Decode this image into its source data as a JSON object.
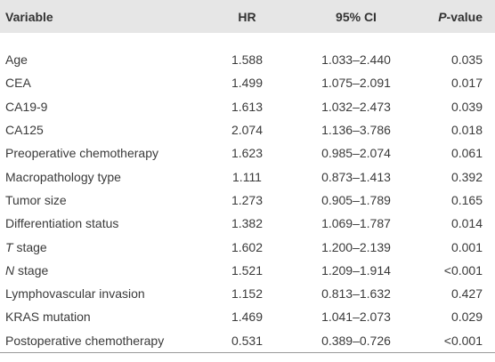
{
  "table": {
    "header": [
      "Variable",
      "HR",
      "95% CI",
      "P-value"
    ],
    "rows": [
      [
        "Age",
        "1.588",
        "1.033–2.440",
        "0.035"
      ],
      [
        "CEA",
        "1.499",
        "1.075–2.091",
        "0.017"
      ],
      [
        "CA19-9",
        "1.613",
        "1.032–2.473",
        "0.039"
      ],
      [
        "CA125",
        "2.074",
        "1.136–3.786",
        "0.018"
      ],
      [
        "Preoperative chemotherapy",
        "1.623",
        "0.985–2.074",
        "0.061"
      ],
      [
        "Macropathology type",
        "1.111",
        "0.873–1.413",
        "0.392"
      ],
      [
        "Tumor size",
        "1.273",
        "0.905–1.789",
        "0.165"
      ],
      [
        "Differentiation status",
        "1.382",
        "1.069–1.787",
        "0.014"
      ],
      [
        "T stage",
        "1.602",
        "1.200–2.139",
        "0.001"
      ],
      [
        "N stage",
        "1.521",
        "1.209–1.914",
        "<0.001"
      ],
      [
        "Lymphovascular invasion",
        "1.152",
        "0.813–1.632",
        "0.427"
      ],
      [
        "KRAS mutation",
        "1.469",
        "1.041–2.073",
        "0.029"
      ],
      [
        "Postoperative chemotherapy",
        "0.531",
        "0.389–0.726",
        "<0.001"
      ]
    ]
  }
}
